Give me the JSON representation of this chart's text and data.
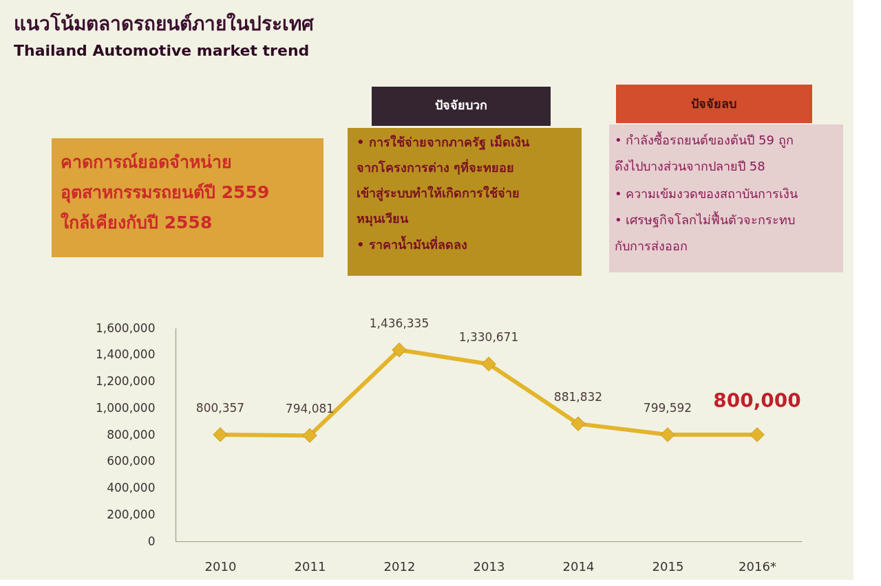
{
  "chart_data": {
    "type": "line",
    "title": "แนวโน้มตลาดรถยนต์ภายในประเทศ",
    "subtitle": "Thailand Automotive market trend",
    "annotations": [
      "คาดการณ์ยอดจำหน่าย\nอุตสาหกรรมรถยนต์ปี 2559\nใกล้เคียงกับปี 2558",
      "ปัจจัยบวก",
      "• การใช้จ่ายจากภาครัฐ เม็ดเงิน\nจากโครงการต่าง ๆที่จะทยอย\nเข้าสู่ระบบทำให้เกิดการใช้จ่าย\nหมุนเวียน",
      "• ราคาน้ำมันที่ลดลง",
      "ปัจจัยลบ",
      "• กำลังซื้อรถยนต์ของต้นปี 59 ถูก\nดึงไปบางส่วนจากปลายปี 58",
      "• ความเข้มงวดของสถาบันการเงิน",
      "• เศรษฐกิจโลกไม่ฟื้นตัวจะกระทบ\nกับการส่งออก",
      {
        "text": "800,000",
        "x": "2016*",
        "y": 800000
      }
    ],
    "categories": [
      "2010",
      "2011",
      "2012",
      "2013",
      "2014",
      "2015",
      "2016*"
    ],
    "values": [
      800357,
      794081,
      1436335,
      1330671,
      881832,
      799592,
      800000
    ],
    "color": "#e3b42c",
    "value_labels": [
      "800,357",
      "794,081",
      "1,436,335",
      "1,330,671",
      "881,832",
      "799,592",
      null
    ],
    "ylim": [
      0,
      1600000
    ],
    "yticks": [
      0,
      {
        "value": 200000,
        "label": "200,000"
      },
      {
        "value": 400000,
        "label": "400,000"
      },
      {
        "value": 600000,
        "label": "600,000"
      },
      {
        "value": 800000,
        "label": "800,000"
      },
      {
        "value": 1000000,
        "label": "1,000,000"
      },
      {
        "value": 1200000,
        "label": "1,200,000"
      },
      {
        "value": 1400000,
        "label": "1,400,000"
      },
      {
        "value": 1600000,
        "label": "1,600,000"
      }
    ],
    "grid": false,
    "marker": "diamond",
    "line_style": "solid"
  }
}
